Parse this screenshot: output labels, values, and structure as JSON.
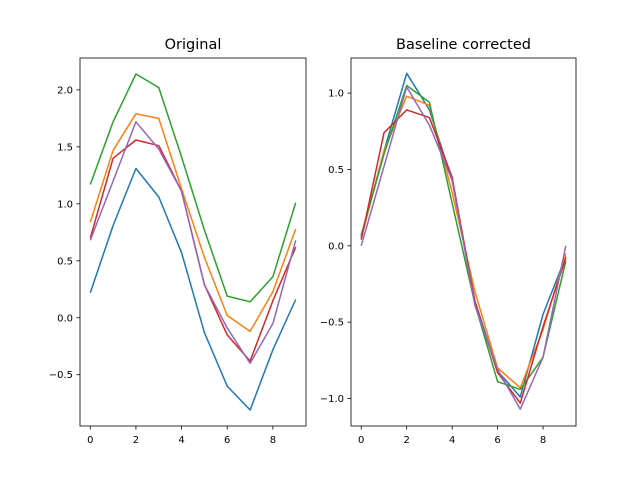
{
  "chart_data": [
    {
      "type": "line",
      "title": "Original",
      "xlabel": "",
      "ylabel": "",
      "xlim": [
        -0.45,
        9.45
      ],
      "ylim": [
        -0.95,
        2.28
      ],
      "xticks": [
        0,
        2,
        4,
        6,
        8
      ],
      "xtick_labels": [
        "0",
        "2",
        "4",
        "6",
        "8"
      ],
      "yticks": [
        -0.5,
        0.0,
        0.5,
        1.0,
        1.5,
        2.0
      ],
      "ytick_labels": [
        "−0.5",
        "0.0",
        "0.5",
        "1.0",
        "1.5",
        "2.0"
      ],
      "grid": false,
      "x": [
        0,
        1,
        2,
        3,
        4,
        5,
        6,
        7,
        8,
        9
      ],
      "series": [
        {
          "color": "#1f77b4",
          "values": [
            0.22,
            0.81,
            1.31,
            1.06,
            0.57,
            -0.13,
            -0.6,
            -0.81,
            -0.28,
            0.16
          ]
        },
        {
          "color": "#ff7f0e",
          "values": [
            0.84,
            1.47,
            1.79,
            1.75,
            1.13,
            0.53,
            0.02,
            -0.12,
            0.23,
            0.78
          ]
        },
        {
          "color": "#2ca02c",
          "values": [
            1.17,
            1.72,
            2.14,
            2.02,
            1.41,
            0.77,
            0.19,
            0.14,
            0.36,
            1.01
          ]
        },
        {
          "color": "#d62728",
          "values": [
            0.7,
            1.4,
            1.56,
            1.51,
            1.11,
            0.29,
            -0.15,
            -0.38,
            0.15,
            0.62
          ]
        },
        {
          "color": "#9467bd",
          "values": [
            0.68,
            1.2,
            1.72,
            1.48,
            1.11,
            0.29,
            -0.09,
            -0.4,
            -0.05,
            0.68
          ]
        }
      ]
    },
    {
      "type": "line",
      "title": "Baseline corrected",
      "xlabel": "",
      "ylabel": "",
      "xlim": [
        -0.45,
        9.45
      ],
      "ylim": [
        -1.18,
        1.23
      ],
      "xticks": [
        0,
        2,
        4,
        6,
        8
      ],
      "xtick_labels": [
        "0",
        "2",
        "4",
        "6",
        "8"
      ],
      "yticks": [
        -1.0,
        -0.5,
        0.0,
        0.5,
        1.0
      ],
      "ytick_labels": [
        "−1.0",
        "−0.5",
        "0.0",
        "0.5",
        "1.0"
      ],
      "grid": false,
      "x": [
        0,
        1,
        2,
        3,
        4,
        5,
        6,
        7,
        8,
        9
      ],
      "series": [
        {
          "color": "#1f77b4",
          "values": [
            0.06,
            0.62,
            1.13,
            0.89,
            0.43,
            -0.36,
            -0.82,
            -0.99,
            -0.45,
            -0.07
          ]
        },
        {
          "color": "#ff7f0e",
          "values": [
            0.05,
            0.62,
            0.98,
            0.92,
            0.35,
            -0.3,
            -0.8,
            -0.93,
            -0.55,
            -0.05
          ]
        },
        {
          "color": "#2ca02c",
          "values": [
            0.07,
            0.6,
            1.05,
            0.94,
            0.28,
            -0.38,
            -0.89,
            -0.94,
            -0.73,
            -0.1
          ]
        },
        {
          "color": "#d62728",
          "values": [
            0.04,
            0.74,
            0.89,
            0.84,
            0.45,
            -0.37,
            -0.83,
            -1.03,
            -0.53,
            -0.08
          ]
        },
        {
          "color": "#9467bd",
          "values": [
            0.0,
            0.52,
            1.04,
            0.79,
            0.43,
            -0.39,
            -0.81,
            -1.07,
            -0.73,
            0.0
          ]
        }
      ]
    }
  ]
}
